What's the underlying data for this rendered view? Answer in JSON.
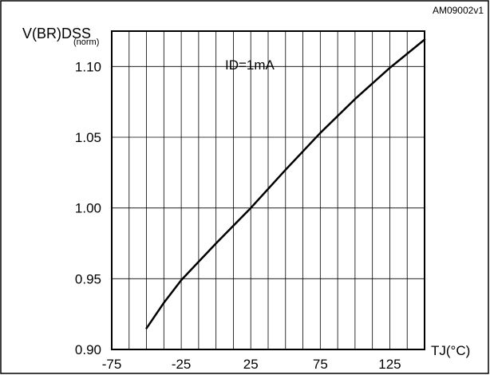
{
  "figure_id": "AM09002v1",
  "y_label": {
    "main": "V(BR)DSS",
    "sub": "(norm)"
  },
  "x_label": "TJ(°C)",
  "annotation": "ID=1mA",
  "chart_data": {
    "type": "line",
    "title": "",
    "xlabel": "TJ(°C)",
    "ylabel": "V(BR)DSS (norm)",
    "xlim": [
      -75,
      150
    ],
    "ylim": [
      0.9,
      1.125
    ],
    "x_ticks": [
      -75,
      -25,
      25,
      75,
      125
    ],
    "x_tick_labels": [
      "-75",
      "-25",
      "25",
      "75",
      "125"
    ],
    "y_ticks": [
      0.9,
      0.95,
      1.0,
      1.05,
      1.1
    ],
    "y_tick_labels": [
      "0.90",
      "0.95",
      "1.00",
      "1.05",
      "1.10"
    ],
    "grid": true,
    "series": [
      {
        "x": [
          -50,
          -37.5,
          -25,
          0,
          25,
          50,
          75,
          100,
          125,
          150
        ],
        "y": [
          0.915,
          0.933,
          0.949,
          0.975,
          1.0,
          1.027,
          1.053,
          1.077,
          1.099,
          1.119
        ]
      }
    ]
  }
}
